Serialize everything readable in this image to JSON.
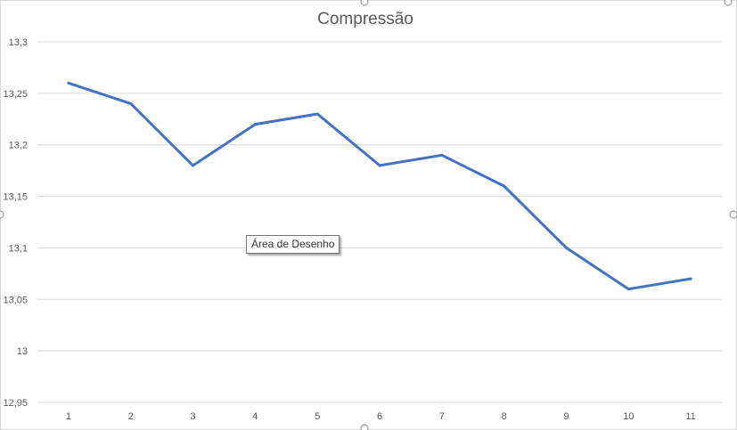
{
  "chart_data": {
    "type": "line",
    "title": "Compressão",
    "xlabel": "",
    "ylabel": "",
    "categories": [
      "1",
      "2",
      "3",
      "4",
      "5",
      "6",
      "7",
      "8",
      "9",
      "10",
      "11"
    ],
    "series": [
      {
        "values": [
          13.26,
          13.24,
          13.18,
          13.22,
          13.23,
          13.18,
          13.19,
          13.16,
          13.1,
          13.06,
          13.07
        ]
      }
    ],
    "ylim": [
      12.95,
      13.3
    ],
    "yticks": [
      "12,95",
      "13",
      "13,05",
      "13,1",
      "13,15",
      "13,2",
      "13,25",
      "13,3"
    ],
    "grid": "horizontal",
    "legend": "none"
  },
  "colors": {
    "line": "#4472c4",
    "gridline": "#d9d9d9",
    "axis_text": "#595959",
    "title_text": "#595959",
    "selection_handle": "#8c8c8c"
  },
  "tooltip": {
    "text": "Área de Desenho"
  }
}
